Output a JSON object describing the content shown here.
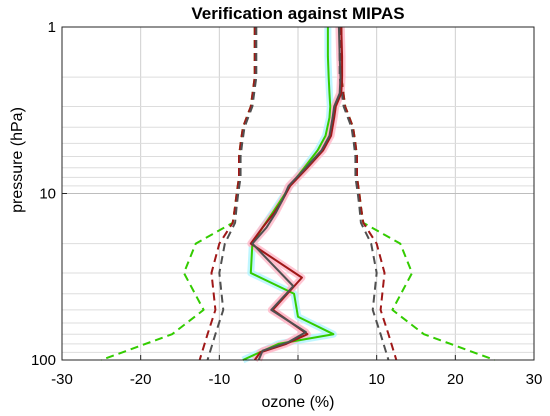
{
  "chart_data": {
    "type": "line",
    "title": "Verification against MIPAS",
    "xlabel": "ozone (%)",
    "ylabel": "pressure (hPa)",
    "xlim": [
      -30,
      30
    ],
    "ylim": [
      100,
      1
    ],
    "yscale": "log",
    "x_ticks": [
      -30,
      -20,
      -10,
      0,
      10,
      20,
      30
    ],
    "y_ticks": [
      1,
      10,
      100
    ],
    "grid": true,
    "legend": "none",
    "colors": {
      "green": "#33cc00",
      "darkred": "#a01818",
      "gray": "#505050",
      "shade_cyan": "#b0f4ff",
      "shade_pink": "#ffb8c8"
    },
    "series": [
      {
        "style": "solid",
        "color": "green",
        "x": [
          3.8,
          3.8,
          3.9,
          4.0,
          4.1,
          4.0,
          3.5,
          2.5,
          0.8,
          -1.0,
          -2.2,
          -3.2,
          -4.5,
          -5.8,
          -6.0,
          -0.5,
          0.0,
          4.5,
          -2.5,
          -7.0
        ],
        "y": [
          1,
          1.5,
          2.0,
          2.5,
          3.0,
          3.5,
          4.5,
          5.5,
          7.0,
          9.0,
          11.0,
          13.0,
          16.0,
          20.0,
          30.0,
          40.0,
          55.0,
          70.0,
          80.0,
          100.0
        ]
      },
      {
        "style": "solid",
        "color": "darkred",
        "x": [
          5.5,
          5.6,
          5.6,
          5.5,
          4.8,
          4.6,
          4.2,
          3.2,
          1.2,
          -1.0,
          -2.0,
          -3.0,
          -4.5,
          -6.0,
          0.5,
          -3.2,
          1.2,
          -1.5,
          -4.8,
          -5.5
        ],
        "y": [
          1,
          1.5,
          2.0,
          2.5,
          3.0,
          3.5,
          4.5,
          5.5,
          7.0,
          9.0,
          11.0,
          13.0,
          16.0,
          20.0,
          32.0,
          50.0,
          70.0,
          80.0,
          90.0,
          100.0
        ]
      },
      {
        "style": "solid",
        "color": "gray",
        "x": [
          5.2,
          5.3,
          5.4,
          5.3,
          4.6,
          4.4,
          4.0,
          3.0,
          1.0,
          -1.2,
          -2.0,
          -2.8,
          -4.0,
          -5.8,
          -0.6,
          -3.4,
          1.0,
          -1.2,
          -4.5,
          -5.0
        ],
        "y": [
          1,
          1.5,
          2.0,
          2.5,
          3.0,
          3.5,
          4.5,
          5.5,
          7.0,
          9.0,
          11.0,
          13.0,
          16.0,
          20.0,
          36.0,
          50.0,
          68.0,
          78.0,
          88.0,
          100.0
        ]
      },
      {
        "style": "dashed",
        "color": "green",
        "x": [
          -5.5,
          -5.5,
          -6.0,
          -7.0,
          -7.3,
          -7.5,
          -7.5,
          -7.5,
          -7.8,
          -8.0,
          -8.3,
          -13.0,
          -14.5,
          -12.0,
          -16.0,
          -25.0
        ],
        "y": [
          1,
          2.0,
          3.0,
          4.0,
          5.0,
          6.0,
          7.0,
          8.0,
          10.0,
          12.0,
          15.0,
          20.0,
          30.0,
          50.0,
          70.0,
          100.0
        ]
      },
      {
        "style": "dashed",
        "color": "green",
        "x": [
          5.5,
          5.5,
          6.0,
          7.0,
          7.3,
          7.5,
          7.5,
          7.5,
          7.8,
          8.0,
          8.3,
          13.0,
          14.5,
          12.0,
          16.0,
          25.0
        ],
        "y": [
          1,
          2.0,
          3.0,
          4.0,
          5.0,
          6.0,
          7.0,
          8.0,
          10.0,
          12.0,
          15.0,
          20.0,
          30.0,
          50.0,
          70.0,
          100.0
        ]
      },
      {
        "style": "dashed",
        "color": "darkred",
        "x": [
          -5.5,
          -5.5,
          -6.0,
          -7.0,
          -7.3,
          -7.5,
          -7.5,
          -7.5,
          -7.8,
          -8.0,
          -8.3,
          -10.0,
          -11.0,
          -10.5,
          -11.5,
          -12.5
        ],
        "y": [
          1,
          2.0,
          3.0,
          4.0,
          5.0,
          6.0,
          7.0,
          8.0,
          10.0,
          12.0,
          15.0,
          20.0,
          30.0,
          50.0,
          70.0,
          100.0
        ]
      },
      {
        "style": "dashed",
        "color": "darkred",
        "x": [
          5.5,
          5.5,
          6.0,
          7.0,
          7.3,
          7.5,
          7.5,
          7.5,
          7.8,
          8.0,
          8.3,
          10.0,
          11.0,
          10.5,
          11.5,
          12.5
        ],
        "y": [
          1,
          2.0,
          3.0,
          4.0,
          5.0,
          6.0,
          7.0,
          8.0,
          10.0,
          12.0,
          15.0,
          20.0,
          30.0,
          50.0,
          70.0,
          100.0
        ]
      },
      {
        "style": "dashed",
        "color": "gray",
        "x": [
          -5.3,
          -5.3,
          -5.8,
          -6.8,
          -7.1,
          -7.3,
          -7.3,
          -7.3,
          -7.6,
          -7.8,
          -8.0,
          -9.3,
          -10.0,
          -9.5,
          -10.5,
          -11.5
        ],
        "y": [
          1,
          2.0,
          3.0,
          4.0,
          5.0,
          6.0,
          7.0,
          8.0,
          10.0,
          12.0,
          15.0,
          20.0,
          30.0,
          50.0,
          70.0,
          100.0
        ]
      },
      {
        "style": "dashed",
        "color": "gray",
        "x": [
          5.3,
          5.3,
          5.8,
          6.8,
          7.1,
          7.3,
          7.3,
          7.3,
          7.6,
          7.8,
          8.0,
          9.3,
          10.0,
          9.5,
          10.5,
          11.5
        ],
        "y": [
          1,
          2.0,
          3.0,
          4.0,
          5.0,
          6.0,
          7.0,
          8.0,
          10.0,
          12.0,
          15.0,
          20.0,
          30.0,
          50.0,
          70.0,
          100.0
        ]
      }
    ]
  }
}
